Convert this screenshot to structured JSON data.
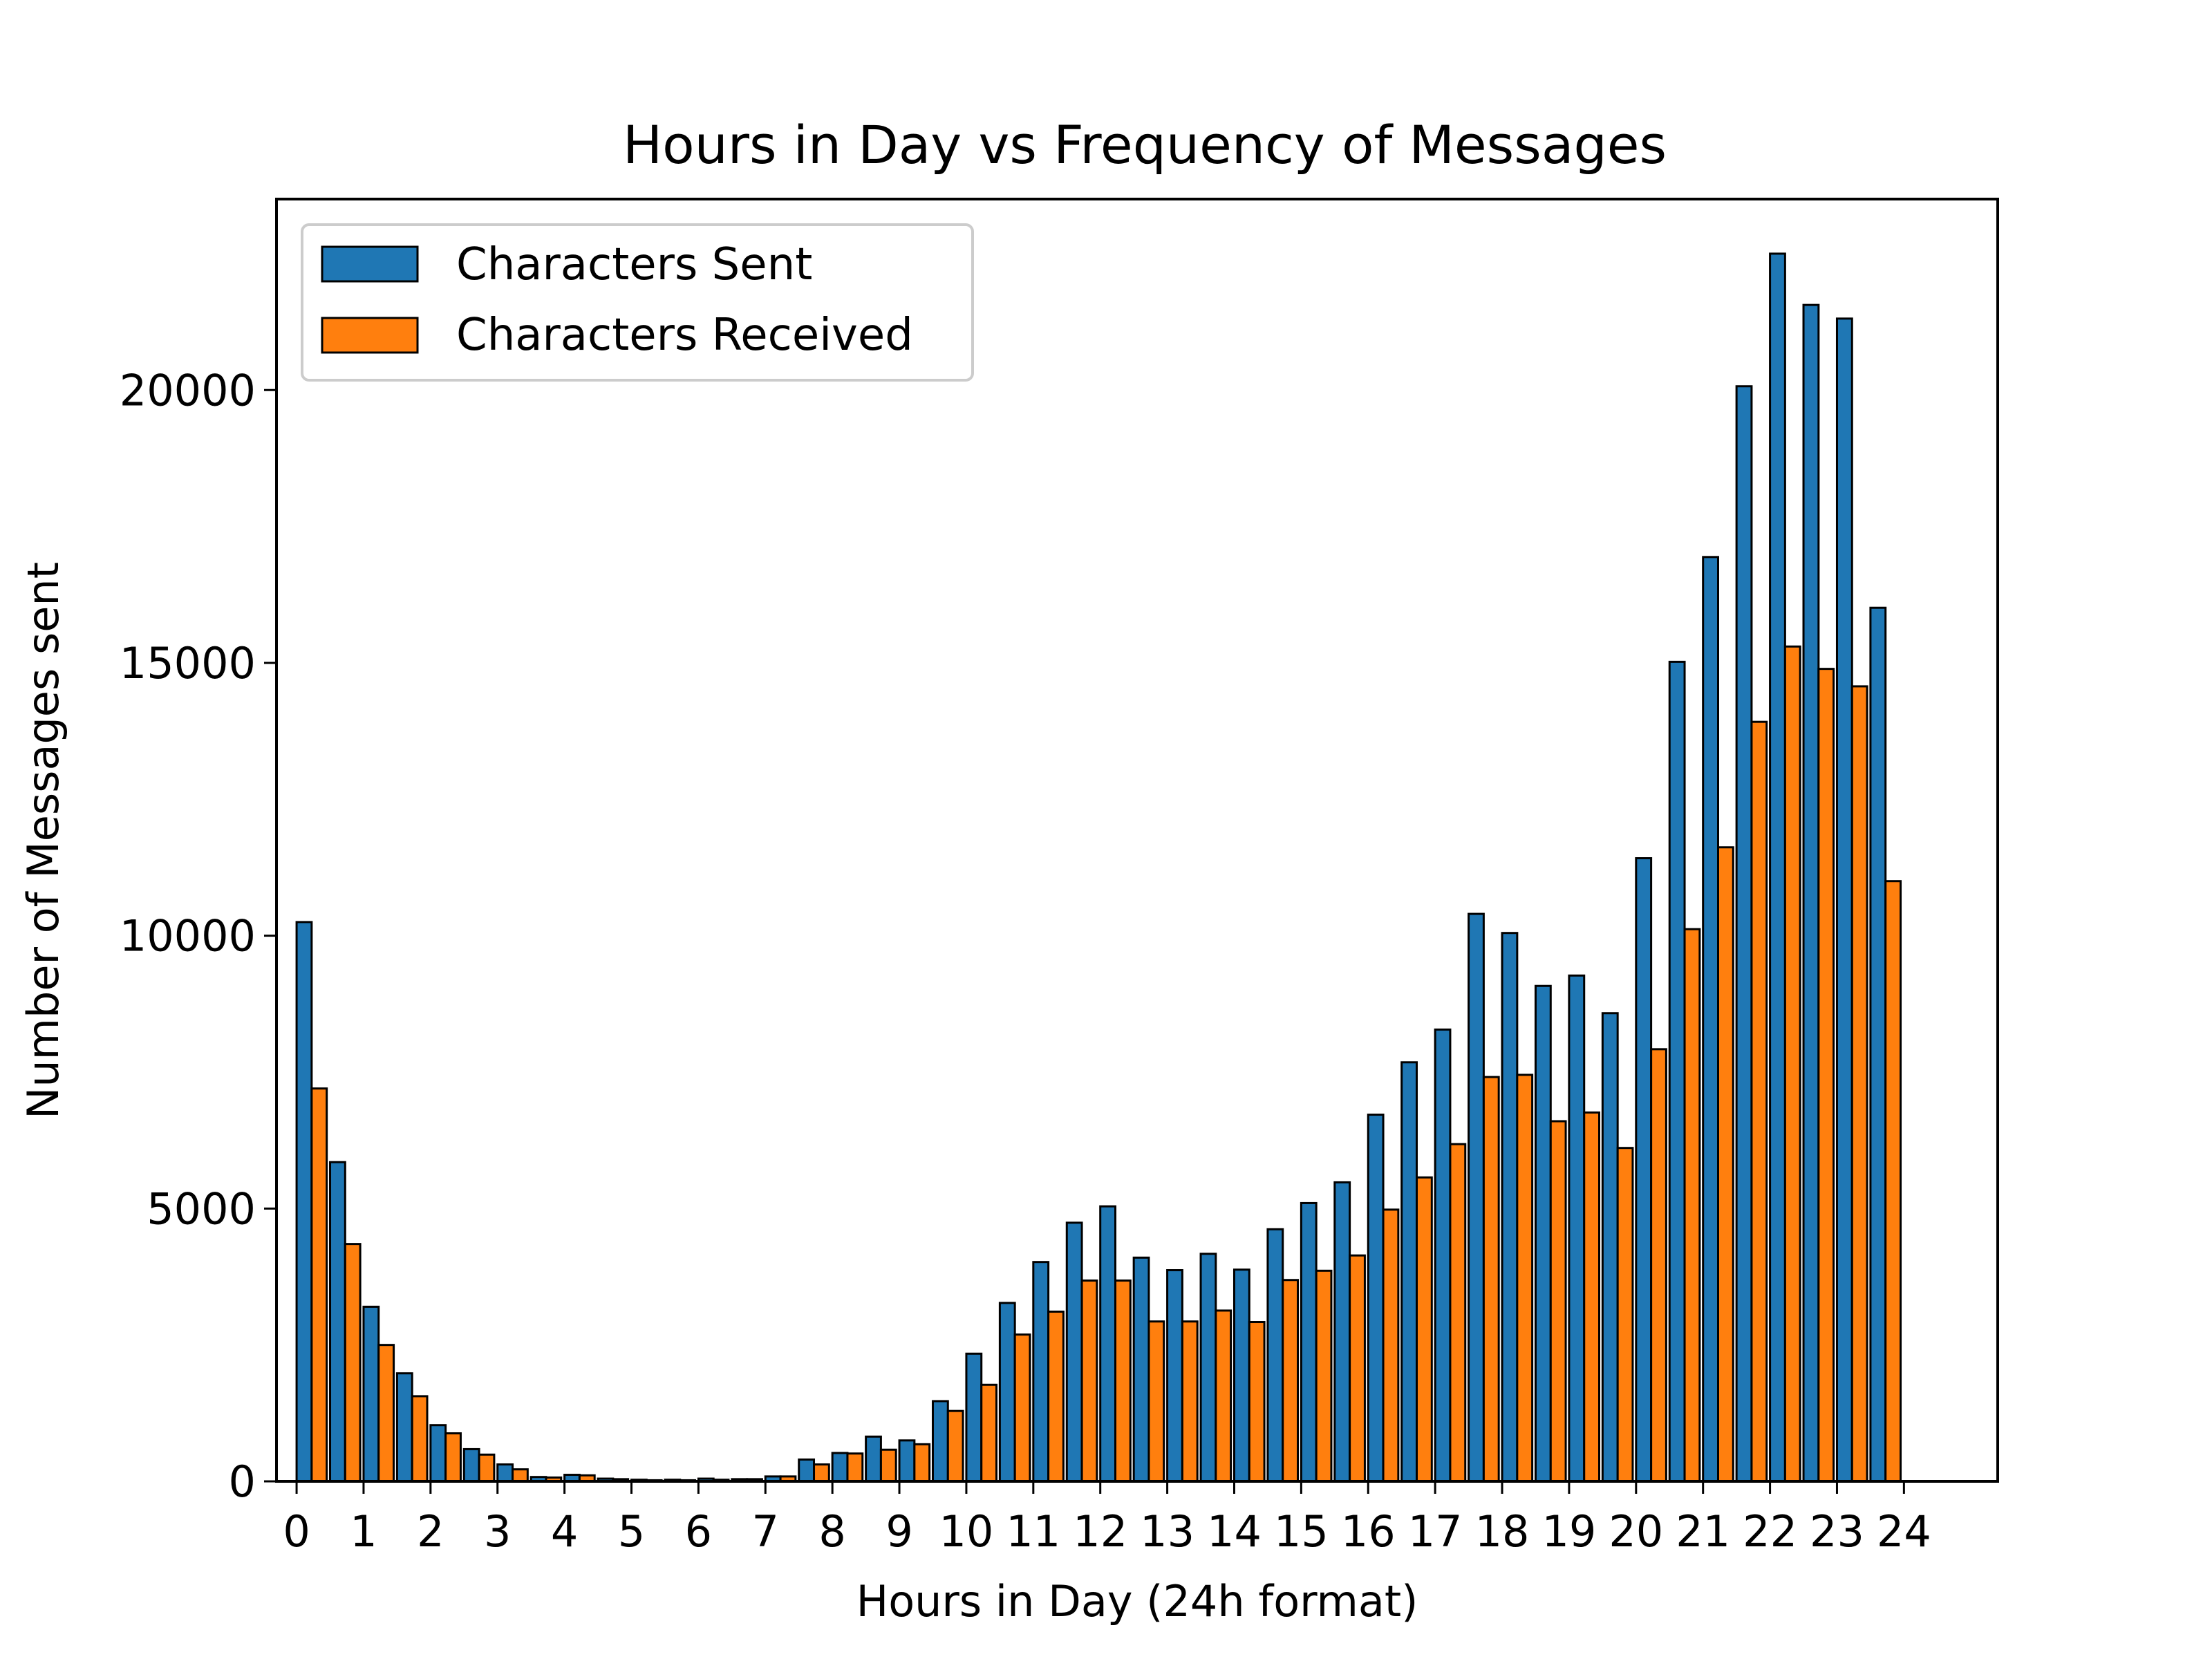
{
  "chart_data": {
    "type": "bar",
    "title": "Hours in Day vs Frequency of Messages",
    "xlabel": "Hours in Day (24h format)",
    "ylabel": "Number of Messages sent",
    "ylim": [
      0,
      23500
    ],
    "xlim": [
      -0.3,
      25.4
    ],
    "yticks": [
      0,
      5000,
      10000,
      15000,
      20000
    ],
    "xticks": [
      0,
      1,
      2,
      3,
      4,
      5,
      6,
      7,
      8,
      9,
      10,
      11,
      12,
      13,
      14,
      15,
      16,
      17,
      18,
      19,
      20,
      21,
      22,
      23,
      24
    ],
    "grid": false,
    "legend_position": "upper-left",
    "bar_edge_color": "#000000",
    "series": [
      {
        "name": "Characters Sent",
        "color": "#1f77b4",
        "x": [
          0.0,
          0.5,
          1.0,
          1.5,
          2.0,
          2.5,
          3.0,
          3.5,
          4.0,
          4.5,
          5.0,
          5.5,
          6.0,
          6.5,
          7.0,
          7.5,
          8.0,
          8.5,
          9.0,
          9.5,
          10.0,
          10.5,
          11.0,
          11.5,
          12.0,
          12.5,
          13.0,
          13.5,
          14.0,
          14.5,
          15.0,
          15.5,
          16.0,
          16.5,
          17.0,
          17.5,
          18.0,
          18.5,
          19.0,
          19.5,
          20.0,
          20.5,
          21.0,
          21.5,
          22.0,
          22.5,
          23.0,
          23.5
        ],
        "values": [
          10250,
          5850,
          3200,
          1980,
          1030,
          590,
          310,
          80,
          120,
          50,
          30,
          30,
          50,
          40,
          90,
          400,
          520,
          820,
          750,
          1470,
          2340,
          3270,
          4020,
          4740,
          5040,
          4100,
          3870,
          4170,
          3880,
          4620,
          5100,
          5480,
          6720,
          7680,
          8280,
          10400,
          10050,
          9080,
          9270,
          8580,
          11420,
          15020,
          16940,
          20070,
          22500,
          21560,
          21310,
          16010
        ]
      },
      {
        "name": "Characters Received",
        "color": "#ff7f0e",
        "x": [
          0.0,
          0.5,
          1.0,
          1.5,
          2.0,
          2.5,
          3.0,
          3.5,
          4.0,
          4.5,
          5.0,
          5.5,
          6.0,
          6.5,
          7.0,
          7.5,
          8.0,
          8.5,
          9.0,
          9.5,
          10.0,
          10.5,
          11.0,
          11.5,
          12.0,
          12.5,
          13.0,
          13.5,
          14.0,
          14.5,
          15.0,
          15.5,
          16.0,
          16.5,
          17.0,
          17.5,
          18.0,
          18.5,
          19.0,
          19.5,
          20.0,
          20.5,
          21.0,
          21.5,
          22.0,
          22.5,
          23.0,
          23.5
        ],
        "values": [
          7200,
          4350,
          2500,
          1560,
          880,
          490,
          220,
          70,
          110,
          40,
          20,
          20,
          30,
          40,
          90,
          310,
          510,
          580,
          680,
          1290,
          1770,
          2690,
          3110,
          3680,
          3680,
          2930,
          2930,
          3130,
          2920,
          3690,
          3860,
          4140,
          4980,
          5570,
          6180,
          7410,
          7450,
          6600,
          6760,
          6110,
          7920,
          10120,
          11620,
          13920,
          15300,
          14890,
          14570,
          11000
        ]
      }
    ]
  }
}
